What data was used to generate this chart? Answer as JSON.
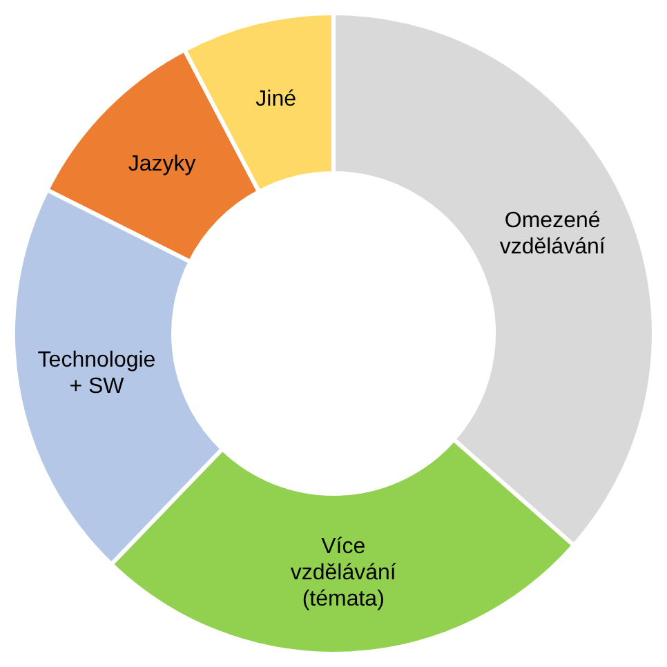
{
  "chart_data": {
    "type": "donut",
    "categories": [
      "Omezené vzdělávání",
      "Více vzdělávání (témata)",
      "Technologie + SW",
      "Jazyky",
      "Jiné"
    ],
    "values": [
      36.5,
      25.7,
      20.2,
      9.9,
      7.7
    ],
    "colors": [
      "#d9d9d9",
      "#92d050",
      "#b4c7e7",
      "#ed7d31",
      "#ffd966"
    ]
  }
}
